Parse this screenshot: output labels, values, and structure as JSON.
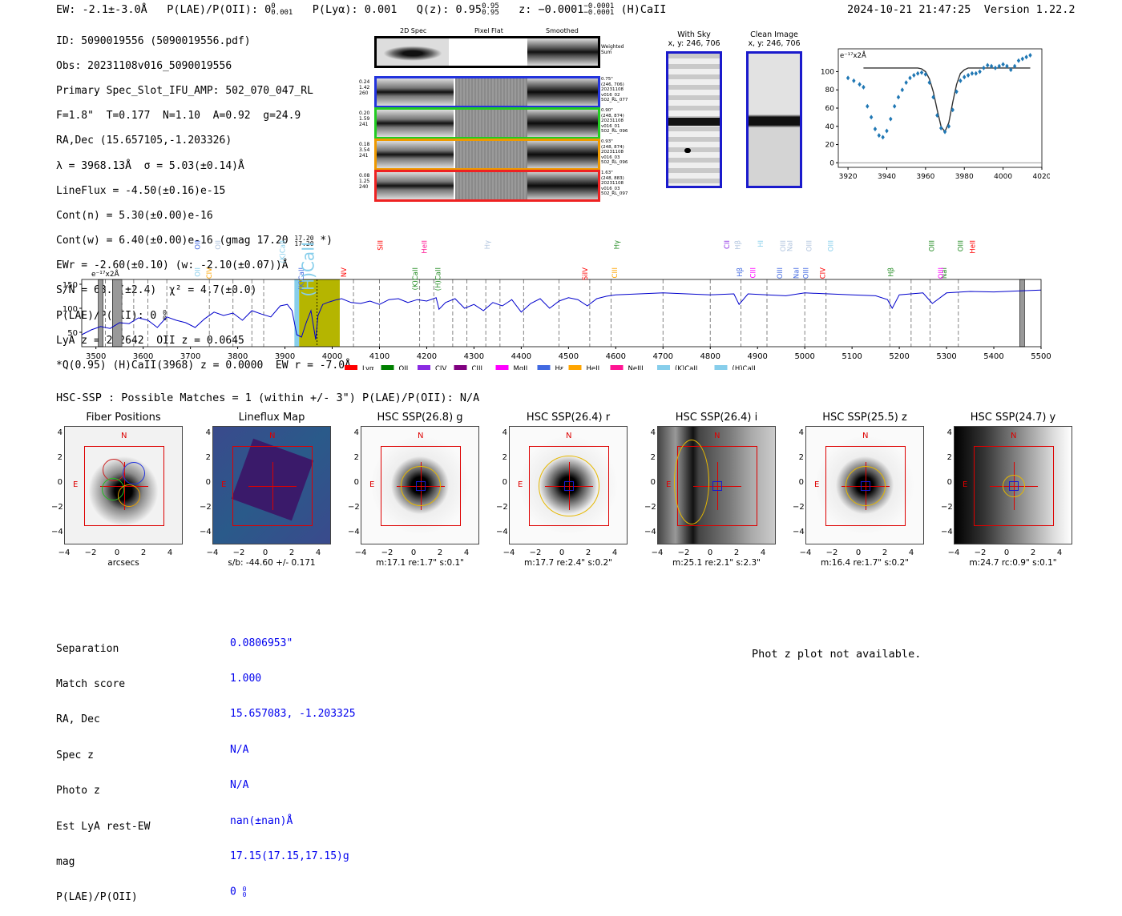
{
  "header": {
    "ew": "EW: -2.1±-3.0Å",
    "plae_label": "P(LAE)/P(OII): 0",
    "plae_sup": "0",
    "plae_sub": "0.001",
    "plya": "P(Lyα): 0.001",
    "qz_label": "Q(z): 0.95",
    "qz_sup": "0.95",
    "qz_sub": "0.95",
    "z_label": "z: −0.0001",
    "z_sup": "−0.0001",
    "z_sub": "−0.0001",
    "z_line": "(H)CaII",
    "timestamp": "2024-10-21 21:47:25",
    "version": "Version 1.22.2"
  },
  "meta": {
    "id": "ID: 5090019556 (5090019556.pdf)",
    "obs": "Obs: 20231108v016_5090019556",
    "primary": "Primary Spec_Slot_IFU_AMP: 502_070_047_RL",
    "fiber": "F=1.8\"  T=0.177  N=1.10  A=0.92  g=24.9",
    "radec": "RA,Dec (15.657105,-1.203326)",
    "lambda": "λ = 3968.13Å  σ = 5.03(±0.14)Å",
    "lineflux": "LineFlux = -4.50(±0.16)e-15",
    "contn": "Cont(n) = 5.30(±0.00)e-16",
    "contw": "Cont(w) = 6.40(±0.00)e-16 (gmag 17.20",
    "contw_sup": "17.20",
    "contw_sub": "17.20",
    "contw_end": " *)",
    "ewr": "EWr = -2.60(±0.10) (w: -2.10(±0.07))Å",
    "sn": "S/N = 68.1(±2.4)  χ² = 4.7(±0.0)",
    "plae": "P(LAE)/P(OII): 0",
    "plae_sup": "0",
    "plae_sub": "0",
    "lya": "LyA z = 2.2642  OII z = 0.0645",
    "q": "*Q(0.95) (H)CaII(3968) z = 0.0000  EW r = -7.0Å"
  },
  "cutouts": {
    "col_titles": [
      "2D Spec",
      "Pixel Flat",
      "Smoothed"
    ],
    "weighted_label": "Weighted\nSum",
    "rows": [
      {
        "left": "0.24\n1.42\n260",
        "right": "0.75\"\n(246, 706)\n20231108\nv016_02\n502_RL_077",
        "color": "#2233dd"
      },
      {
        "left": "0.20\n1.59\n241",
        "right": "0.90\"\n(248, 874)\n20231108\nv016_01\n502_RL_096",
        "color": "#22cc22"
      },
      {
        "left": "0.18\n3.54\n241",
        "right": "0.93\"\n(248, 874)\n20231108\nv016_03\n502_RL_096",
        "color": "#ee9900"
      },
      {
        "left": "0.08\n1.25\n240",
        "right": "1.63\"\n(248, 883)\n20231108\nv016_03\n502_RL_097",
        "color": "#ee2222"
      }
    ]
  },
  "sky": {
    "with_title": "With Sky",
    "with_xy": "x, y: 246, 706",
    "clean_title": "Clean Image",
    "clean_xy": "x, y: 246, 706"
  },
  "zoom_chart": {
    "type": "scatter",
    "unit_label": "e⁻¹⁷x2Å",
    "x": [
      3920,
      3923,
      3926,
      3928,
      3930,
      3932,
      3934,
      3936,
      3938,
      3940,
      3942,
      3944,
      3946,
      3948,
      3950,
      3952,
      3954,
      3956,
      3958,
      3960,
      3962,
      3964,
      3966,
      3968,
      3970,
      3972,
      3974,
      3976,
      3978,
      3980,
      3982,
      3984,
      3986,
      3988,
      3990,
      3992,
      3994,
      3996,
      3998,
      4000,
      4002,
      4004,
      4006,
      4008,
      4010,
      4012,
      4014
    ],
    "values": [
      93,
      90,
      86,
      83,
      62,
      50,
      37,
      30,
      28,
      35,
      48,
      62,
      72,
      80,
      88,
      93,
      96,
      98,
      99,
      97,
      88,
      72,
      52,
      38,
      34,
      40,
      58,
      78,
      90,
      94,
      96,
      98,
      98,
      100,
      104,
      107,
      106,
      104,
      106,
      108,
      106,
      102,
      106,
      112,
      114,
      116,
      118
    ],
    "fit": [
      104,
      104,
      104,
      104,
      104,
      104,
      104,
      104,
      104,
      104,
      104,
      104,
      104,
      104,
      104,
      104,
      104,
      104,
      103,
      100,
      92,
      78,
      58,
      40,
      34,
      44,
      66,
      86,
      98,
      102,
      104,
      104,
      104,
      104,
      104,
      104,
      104,
      104,
      104,
      104,
      104,
      104,
      104,
      104,
      104,
      104,
      104
    ],
    "xlim": [
      3915,
      4020
    ],
    "ylim": [
      -5,
      125
    ],
    "xticks": [
      3920,
      3940,
      3960,
      3980,
      4000,
      4020
    ],
    "yticks": [
      0,
      20,
      40,
      60,
      80,
      100
    ]
  },
  "spectrum_chart": {
    "type": "line",
    "unit_label": "e⁻¹⁷x2Å",
    "xlim": [
      3470,
      5500
    ],
    "ylim": [
      20,
      160
    ],
    "xticks": [
      3500,
      3600,
      3700,
      3800,
      3900,
      4000,
      4100,
      4200,
      4300,
      4400,
      4500,
      4600,
      4700,
      4800,
      4900,
      5000,
      5100,
      5200,
      5300,
      5400,
      5500
    ],
    "yticks": [
      50,
      100,
      150
    ],
    "x": [
      3470,
      3490,
      3510,
      3530,
      3550,
      3570,
      3590,
      3610,
      3630,
      3650,
      3670,
      3690,
      3710,
      3730,
      3750,
      3770,
      3790,
      3810,
      3830,
      3850,
      3870,
      3890,
      3905,
      3915,
      3925,
      3935,
      3945,
      3955,
      3965,
      3970,
      3980,
      3990,
      4000,
      4010,
      4020,
      4040,
      4060,
      4080,
      4100,
      4120,
      4140,
      4160,
      4180,
      4200,
      4220,
      4226,
      4240,
      4260,
      4280,
      4300,
      4320,
      4340,
      4360,
      4380,
      4400,
      4420,
      4440,
      4460,
      4480,
      4500,
      4520,
      4540,
      4560,
      4580,
      4600,
      4650,
      4700,
      4750,
      4800,
      4850,
      4861,
      4880,
      4920,
      4960,
      5000,
      5050,
      5100,
      5150,
      5175,
      5185,
      5200,
      5250,
      5270,
      5300,
      5350,
      5400,
      5450,
      5500
    ],
    "values": [
      45,
      55,
      62,
      58,
      70,
      68,
      80,
      75,
      60,
      82,
      75,
      70,
      60,
      78,
      92,
      85,
      90,
      75,
      95,
      88,
      82,
      105,
      108,
      95,
      45,
      40,
      70,
      95,
      35,
      85,
      108,
      112,
      115,
      118,
      120,
      112,
      110,
      115,
      108,
      118,
      120,
      112,
      118,
      115,
      122,
      98,
      112,
      120,
      100,
      108,
      95,
      112,
      105,
      118,
      92,
      110,
      120,
      100,
      115,
      122,
      118,
      105,
      120,
      125,
      128,
      130,
      132,
      130,
      128,
      130,
      108,
      130,
      128,
      126,
      132,
      130,
      128,
      126,
      118,
      100,
      128,
      132,
      110,
      132,
      135,
      134,
      136,
      138
    ],
    "emission_labels": [
      {
        "text": "OII",
        "x": 3727,
        "color": "#4169e1"
      },
      {
        "text": "CIV",
        "x": 3745,
        "color": "#ffa500"
      },
      {
        "text": "OII",
        "x": 3757,
        "color": "#b0c4de"
      },
      {
        "text": "OII",
        "x": 3727,
        "color": "#87ceeb"
      },
      {
        "text": "(K)CaII",
        "x": 3900,
        "color": "#87ceeb"
      },
      {
        "text": "(K)CaII",
        "x": 3933,
        "color": "#4169e1"
      },
      {
        "text": "(H)CaII",
        "x": 3968,
        "color": "#87ceeb"
      },
      {
        "text": "NV",
        "x": 4030,
        "color": "#ff0000"
      },
      {
        "text": "SiII",
        "x": 4100,
        "color": "#ff0000"
      },
      {
        "text": "(K)CaII",
        "x": 4187,
        "color": "#228b22"
      },
      {
        "text": "HeII",
        "x": 4200,
        "color": "#ff1493"
      },
      {
        "text": "(H)CaII",
        "x": 4222,
        "color": "#228b22"
      },
      {
        "text": "Hγ",
        "x": 4340,
        "color": "#b0c4de"
      },
      {
        "text": "SiIV",
        "x": 4540,
        "color": "#ff0000"
      },
      {
        "text": "Hγ",
        "x": 4600,
        "color": "#228b22"
      },
      {
        "text": "CIII",
        "x": 4610,
        "color": "#ffa500"
      },
      {
        "text": "CII",
        "x": 4840,
        "color": "#8a2be2"
      },
      {
        "text": "Hβ",
        "x": 4861,
        "color": "#4169e1"
      },
      {
        "text": "Hβ",
        "x": 4870,
        "color": "#b0c4de"
      },
      {
        "text": "CIII",
        "x": 4895,
        "color": "#ff00ff"
      },
      {
        "text": "HI",
        "x": 4905,
        "color": "#87ceeb"
      },
      {
        "text": "OIII",
        "x": 4959,
        "color": "#4169e1"
      },
      {
        "text": "OIII",
        "x": 4959,
        "color": "#b0c4de"
      },
      {
        "text": "NaI",
        "x": 4980,
        "color": "#4169e1"
      },
      {
        "text": "NaI",
        "x": 4980,
        "color": "#b0c4de"
      },
      {
        "text": "OIII",
        "x": 5007,
        "color": "#4169e1"
      },
      {
        "text": "OIII",
        "x": 5007,
        "color": "#b0c4de"
      },
      {
        "text": "CIV",
        "x": 5050,
        "color": "#ff0000"
      },
      {
        "text": "OIII",
        "x": 5060,
        "color": "#87ceeb"
      },
      {
        "text": "Hβ",
        "x": 5180,
        "color": "#228b22"
      },
      {
        "text": "OIII",
        "x": 5280,
        "color": "#228b22"
      },
      {
        "text": "NaI",
        "x": 5300,
        "color": "#228b22"
      },
      {
        "text": "OIII",
        "x": 5328,
        "color": "#228b22"
      },
      {
        "text": "OIII",
        "x": 5300,
        "color": "#ff00ff"
      },
      {
        "text": "HeII",
        "x": 5360,
        "color": "#ff0000"
      }
    ],
    "legend": [
      {
        "label": "Lyα",
        "color": "#ff0000"
      },
      {
        "label": "OII",
        "color": "#008000"
      },
      {
        "label": "CIV",
        "color": "#8a2be2"
      },
      {
        "label": "CIII",
        "color": "#800080"
      },
      {
        "label": "MgII",
        "color": "#ff00ff"
      },
      {
        "label": "Hε",
        "color": "#4169e1"
      },
      {
        "label": "HeII",
        "color": "#ffa500"
      },
      {
        "label": "NeIII",
        "color": "#ff1493"
      },
      {
        "label": "(K)CaII",
        "color": "#87ceeb"
      },
      {
        "label": "(H)CaII",
        "color": "#87ceeb"
      }
    ]
  },
  "hsc": {
    "summary": "HSC-SSP : Possible Matches = 1 (within +/- 3\")  P(LAE)/P(OII): N/A",
    "panels": [
      {
        "title": "Fiber Positions",
        "caption": "arcsecs"
      },
      {
        "title": "Lineflux Map",
        "caption": "s/b: -44.60 +/- 0.171"
      },
      {
        "title": "HSC SSP(26.8) g",
        "caption": "m:17.1  re:1.7\"  s:0.1\""
      },
      {
        "title": "HSC SSP(26.4) r",
        "caption": "m:17.7  re:2.4\"  s:0.2\""
      },
      {
        "title": "HSC SSP(26.4) i",
        "caption": "m:25.1  re:2.1\"  s:2.3\""
      },
      {
        "title": "HSC SSP(25.5) z",
        "caption": "m:16.4  re:1.7\"  s:0.2\""
      },
      {
        "title": "HSC SSP(24.7) y",
        "caption": "m:24.7  rc:0.9\"  s:0.1\""
      }
    ],
    "compass_n": "N",
    "compass_e": "E",
    "ticks": [
      "4",
      "2",
      "0",
      "−2",
      "−4"
    ],
    "xticks": [
      "−4",
      "−2",
      "0",
      "2",
      "4"
    ]
  },
  "match": {
    "labels": [
      "Separation",
      "Match score",
      "RA, Dec",
      "Spec z",
      "Photo z",
      "Est LyA rest-EW",
      "mag",
      "P(LAE)/P(OII)"
    ],
    "values": [
      "0.0806953\"",
      "1.000",
      "15.657083, -1.203325",
      "N/A",
      "N/A",
      "nan(±nan)Å",
      "17.15(17.15,17.15)g",
      "0"
    ],
    "plae_sup": "0",
    "plae_sub": "0",
    "phot_z_msg": "Phot z plot not available."
  },
  "colors": {
    "spectrum": "#0000cc",
    "fit": "#333333",
    "points": "#1f77b4",
    "band": "#b5b500",
    "compass": "#dd0000"
  }
}
